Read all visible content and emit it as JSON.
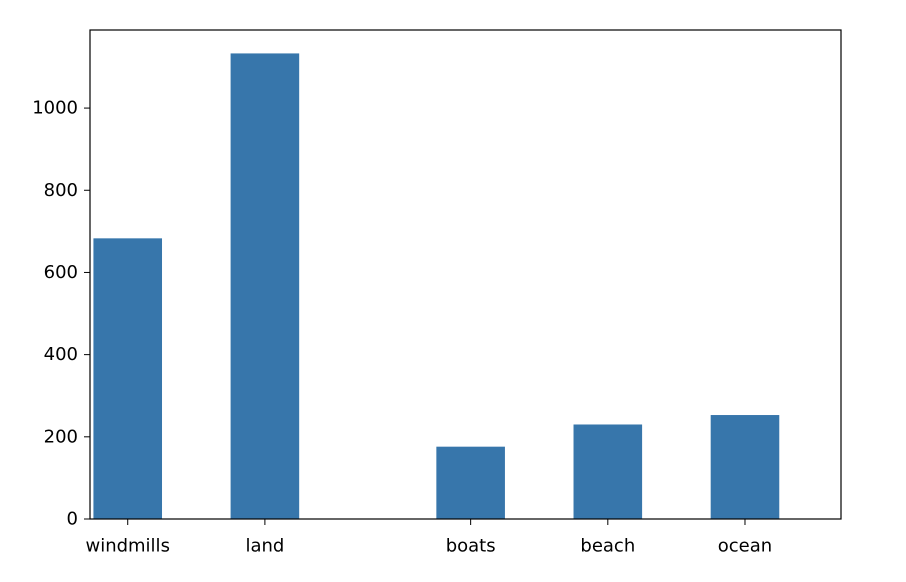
{
  "chart_data": {
    "type": "bar",
    "title": "",
    "xlabel": "",
    "ylabel": "",
    "categories": [
      "windmills",
      "land",
      "boats",
      "beach",
      "ocean"
    ],
    "x_positions": [
      0,
      1,
      2.5,
      3.5,
      4.5
    ],
    "values": [
      683,
      1133,
      176,
      230,
      253
    ],
    "ylim": [
      0,
      1190
    ],
    "xlim": [
      -0.275,
      5.2
    ],
    "yticks": [
      0,
      200,
      400,
      600,
      800,
      1000
    ],
    "ytick_labels": [
      "0",
      "200",
      "400",
      "600",
      "800",
      "1000"
    ],
    "bar_color": "#3776ab",
    "grid": false,
    "legend": "none"
  }
}
